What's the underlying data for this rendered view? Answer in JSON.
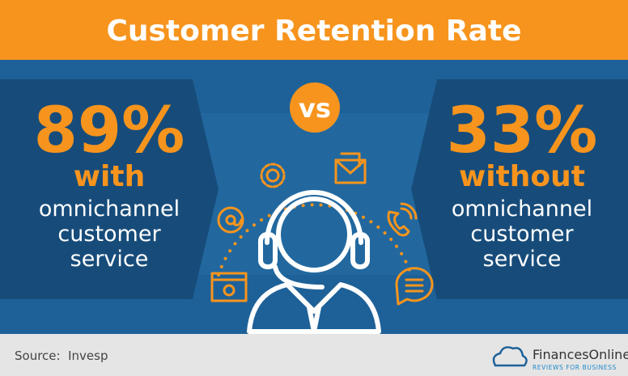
{
  "header": {
    "title": "Customer Retention Rate"
  },
  "left": {
    "value": "89%",
    "qualifier": "with",
    "lines": [
      "omnichannel",
      "customer",
      "service"
    ]
  },
  "center": {
    "label": "vs"
  },
  "right": {
    "value": "33%",
    "qualifier": "without",
    "lines": [
      "omnichannel",
      "customer",
      "service"
    ]
  },
  "footer": {
    "source": "Source:  Invesp",
    "brand": "FinancesOnline",
    "tagline": "REVIEWS FOR BUSINESS"
  }
}
